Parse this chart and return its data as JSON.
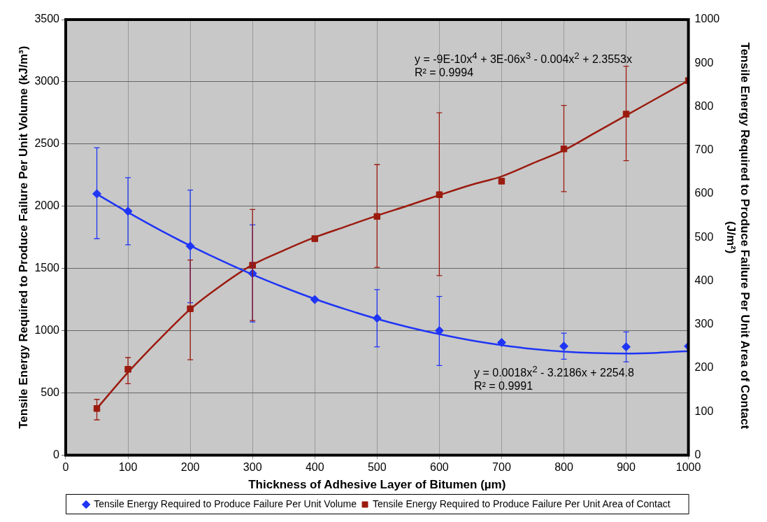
{
  "chart_data": {
    "type": "scatter",
    "xlabel": "Thickness of Adhesive Layer of Bitumen (µm)",
    "ylabel": "Tensile Energy Required to Produce Failure Per Unit Volume (kJ/m³)",
    "y2label": "Tensile Energy Required to Produce Failure Per Unit Area of Contact  (J/m²)",
    "xlim": [
      0,
      1000
    ],
    "xticks": [
      0,
      100,
      200,
      300,
      400,
      500,
      600,
      700,
      800,
      900,
      1000
    ],
    "ylim": [
      0,
      3500
    ],
    "yticks": [
      0,
      500,
      1000,
      1500,
      2000,
      2500,
      3000,
      3500
    ],
    "y2lim": [
      0,
      1000
    ],
    "y2ticks": [
      0,
      100,
      200,
      300,
      400,
      500,
      600,
      700,
      800,
      900,
      1000
    ],
    "grid": true,
    "legend": "bottom",
    "annotations": [
      "y = -9E-10x$^{4}$ + 3E-06x$^{3}$ - 0.004x$^{2}$ + 2.3553x",
      "R² = 0.9994",
      "y = 0.0018x$^{2}$ - 3.2186x + 2254.8",
      "R² = 0.9991"
    ],
    "series": [
      {
        "name": "Tensile Energy Required to Produce Failure Per Unit Volume",
        "marker": "diamond",
        "color": "#1f35f5",
        "x": [
          50,
          100,
          200,
          300,
          400,
          500,
          600,
          700,
          800,
          900,
          1000
        ],
        "values": [
          2100,
          1960,
          1680,
          1460,
          1250,
          1100,
          1000,
          905,
          875,
          870,
          875
        ],
        "errors": [
          [
            1740,
            2470
          ],
          [
            1690,
            2230
          ],
          [
            1225,
            2130
          ],
          [
            1070,
            1850
          ],
          null,
          [
            870,
            1330
          ],
          [
            720,
            1275
          ],
          null,
          [
            770,
            980
          ],
          [
            750,
            990
          ],
          null
        ]
      },
      {
        "name": "Tensile Energy Required to Produce Failure Per Unit Area of Contact",
        "marker": "square",
        "axis": "y2",
        "color": "#9b1b0f",
        "x": [
          50,
          100,
          200,
          300,
          400,
          500,
          600,
          700,
          800,
          900,
          1000
        ],
        "values": [
          107,
          197,
          336,
          436,
          497,
          548,
          598,
          629,
          703,
          783,
          860
        ],
        "errors": [
          [
            81,
            128
          ],
          [
            164,
            224
          ],
          [
            219,
            448
          ],
          [
            309,
            564
          ],
          null,
          [
            431,
            667
          ],
          [
            412,
            786
          ],
          null,
          [
            605,
            803
          ],
          [
            676,
            893
          ],
          null
        ]
      },
      {
        "type": "line",
        "marker": "none",
        "color": "#1f35f5",
        "x": [
          50,
          100,
          150,
          200,
          250,
          300,
          350,
          400,
          450,
          500,
          550,
          600,
          650,
          700,
          750,
          800,
          850,
          900,
          950,
          1000
        ],
        "values": [
          2098,
          1951,
          1812,
          1683,
          1563,
          1451,
          1349,
          1255,
          1171,
          1095,
          1029,
          972,
          923,
          884,
          853,
          832,
          820,
          816,
          822,
          836
        ]
      },
      {
        "type": "line",
        "marker": "none",
        "axis": "y2",
        "color": "#9b1b0f",
        "x": [
          50,
          100,
          150,
          200,
          250,
          300,
          350,
          400,
          450,
          500,
          550,
          600,
          650,
          700,
          750,
          800,
          850,
          900,
          950,
          1000
        ],
        "values": [
          107,
          190,
          265,
          335,
          390,
          437,
          470,
          500,
          525,
          550,
          573,
          597,
          620,
          640,
          670,
          700,
          740,
          780,
          820,
          860
        ]
      }
    ]
  }
}
